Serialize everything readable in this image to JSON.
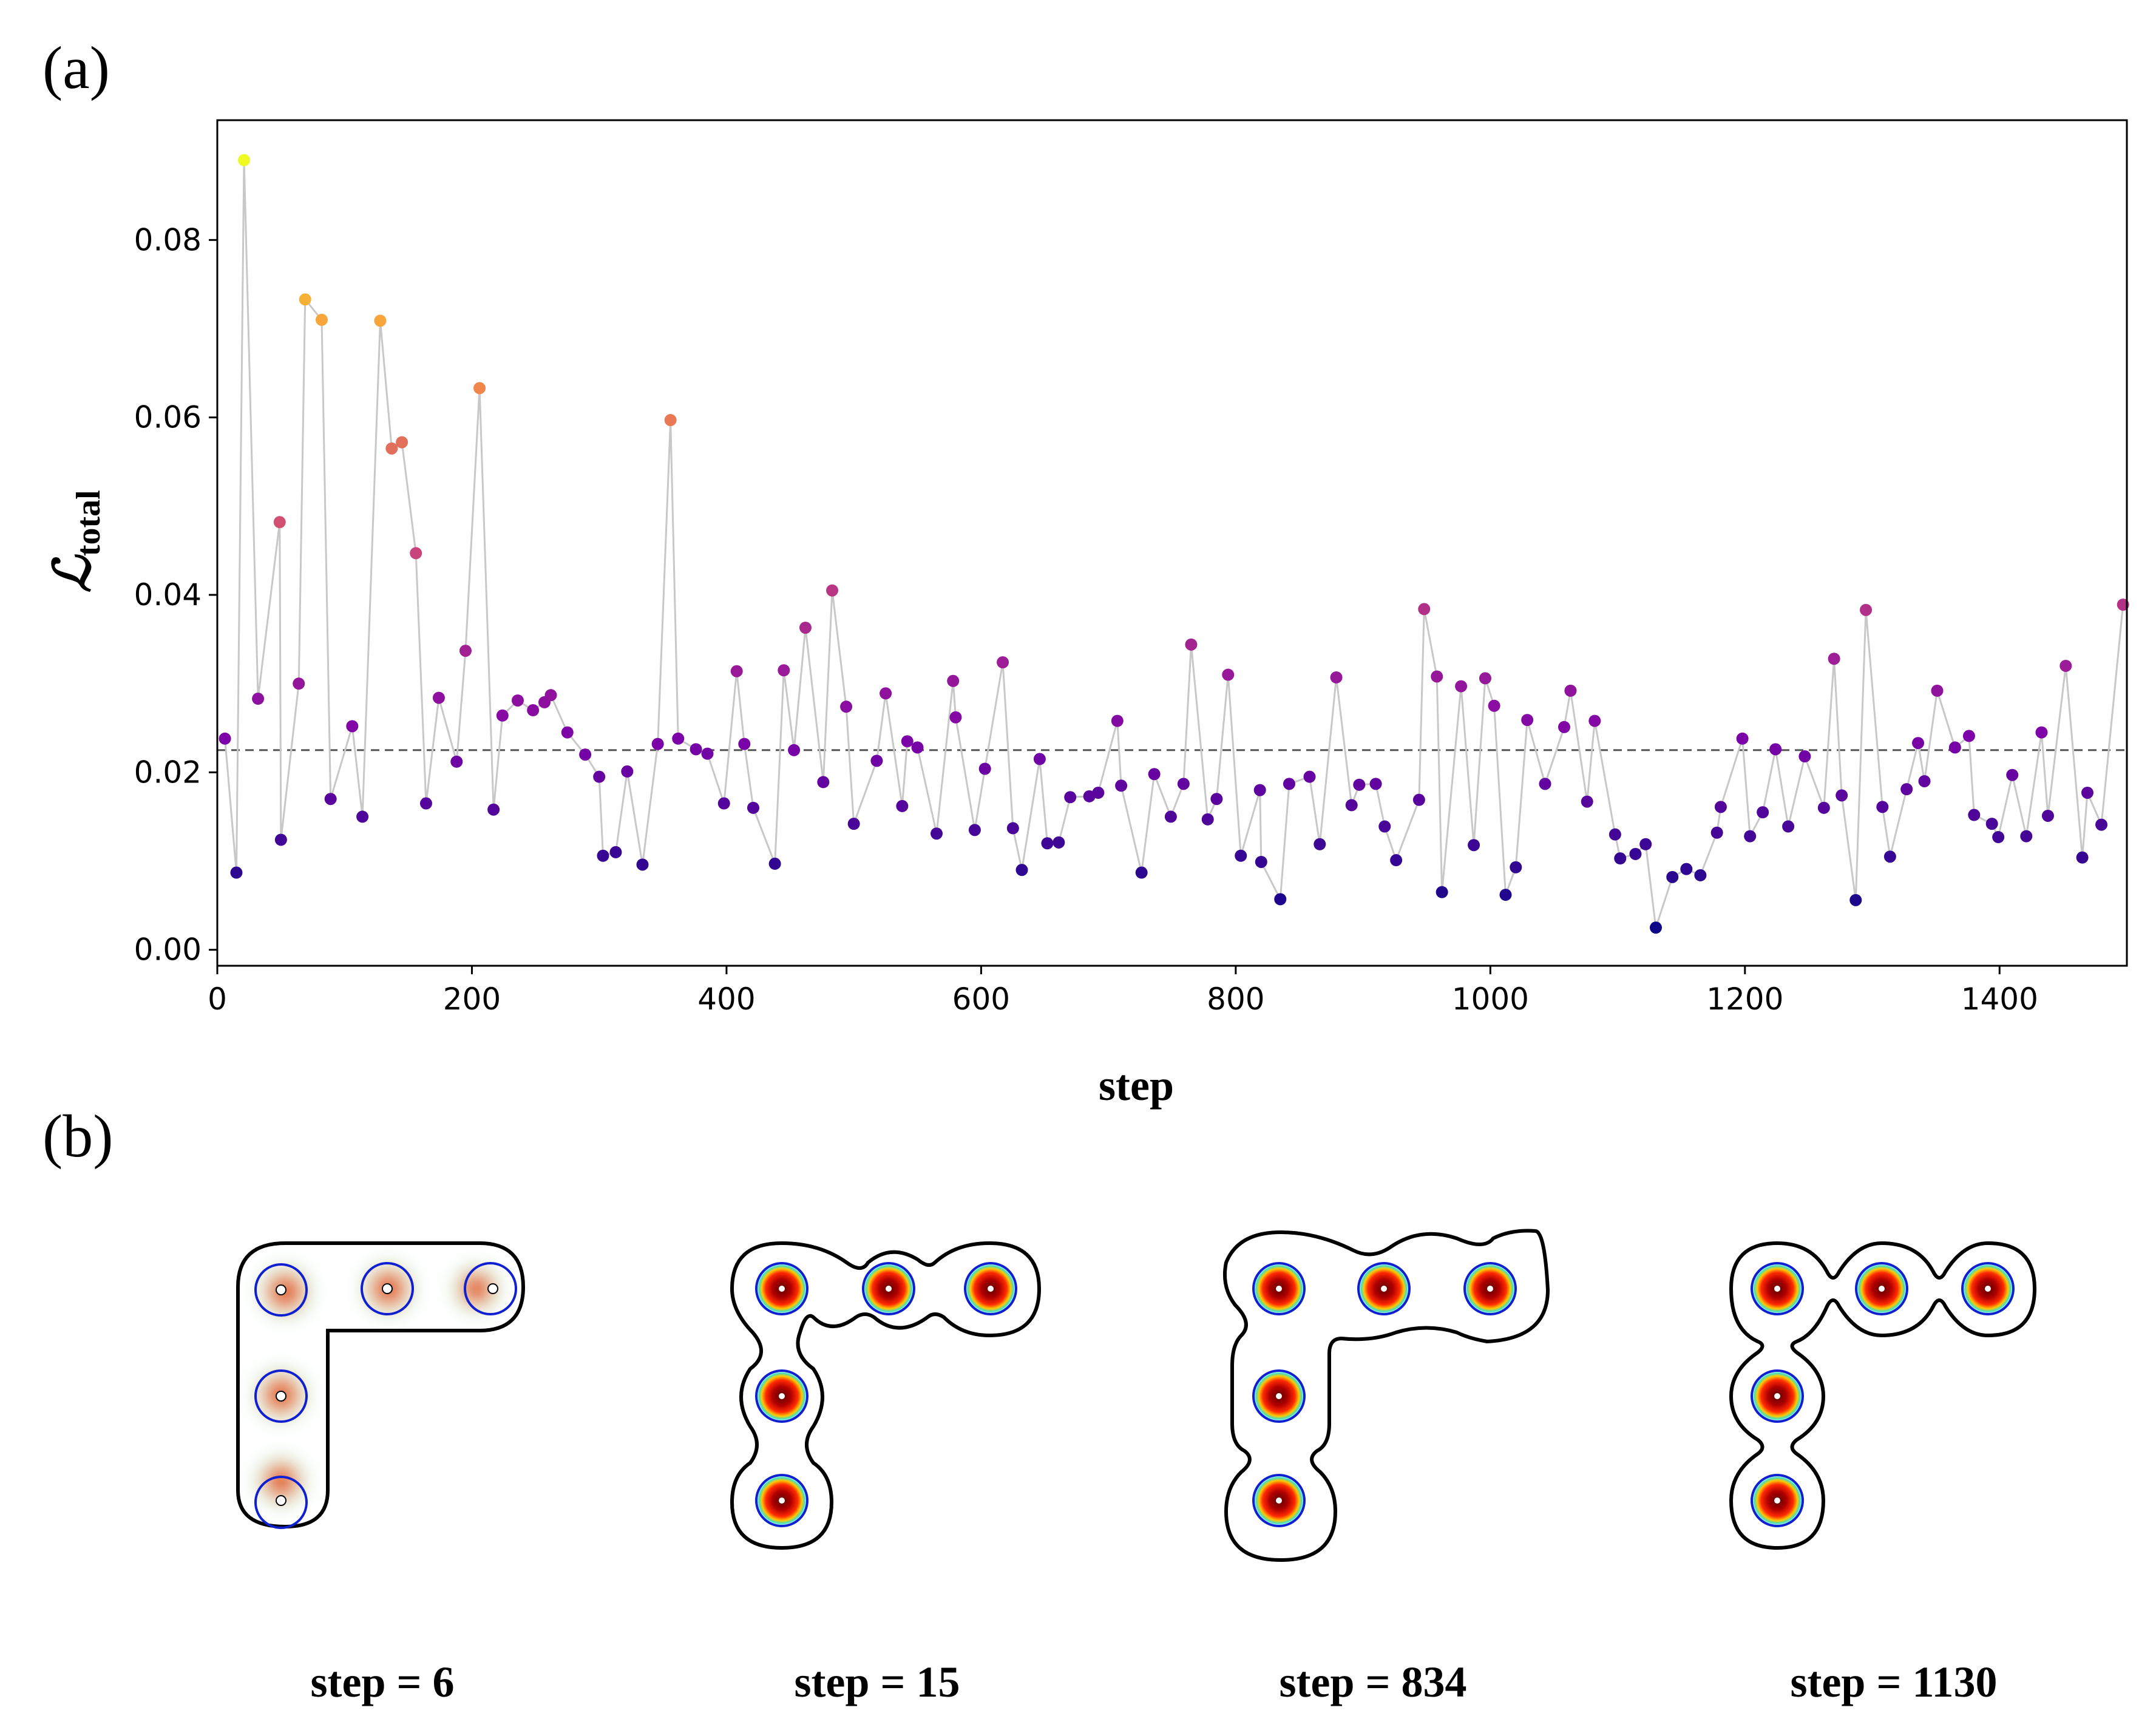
{
  "panels": {
    "a_label": "(a)",
    "b_label": "(b)"
  },
  "chart_data": {
    "type": "scatter",
    "title": "",
    "xlabel": "step",
    "ylabel_main": "ℒ",
    "ylabel_sub": "total",
    "xlim": [
      0,
      1500
    ],
    "ylim": [
      -0.0018,
      0.0935
    ],
    "xticks": [
      0,
      200,
      400,
      600,
      800,
      1000,
      1200,
      1400
    ],
    "yticks": [
      0.0,
      0.02,
      0.04,
      0.06,
      0.08
    ],
    "ytick_labels": [
      "0.00",
      "0.02",
      "0.04",
      "0.06",
      "0.08"
    ],
    "reference_line": 0.0225,
    "colormap": "plasma",
    "series": [
      {
        "name": "total loss",
        "points": [
          [
            6,
            0.0238
          ],
          [
            15,
            0.0087
          ],
          [
            21,
            0.089
          ],
          [
            32,
            0.0283
          ],
          [
            49,
            0.0482
          ],
          [
            50,
            0.0124
          ],
          [
            64,
            0.03
          ],
          [
            69,
            0.0733
          ],
          [
            82,
            0.071
          ],
          [
            89,
            0.017
          ],
          [
            106,
            0.0252
          ],
          [
            114,
            0.015
          ],
          [
            128,
            0.0709
          ],
          [
            137,
            0.0565
          ],
          [
            145,
            0.0572
          ],
          [
            156,
            0.0447
          ],
          [
            164,
            0.0165
          ],
          [
            174,
            0.0284
          ],
          [
            188,
            0.0212
          ],
          [
            195,
            0.0337
          ],
          [
            206,
            0.0633
          ],
          [
            217,
            0.0158
          ],
          [
            224,
            0.0264
          ],
          [
            236,
            0.0281
          ],
          [
            248,
            0.027
          ],
          [
            257,
            0.0279
          ],
          [
            262,
            0.0287
          ],
          [
            275,
            0.0245
          ],
          [
            289,
            0.022
          ],
          [
            300,
            0.0195
          ],
          [
            303,
            0.0106
          ],
          [
            313,
            0.011
          ],
          [
            322,
            0.0201
          ],
          [
            334,
            0.0096
          ],
          [
            346,
            0.0232
          ],
          [
            356,
            0.0597
          ],
          [
            362,
            0.0238
          ],
          [
            376,
            0.0226
          ],
          [
            385,
            0.0221
          ],
          [
            398,
            0.0165
          ],
          [
            408,
            0.0314
          ],
          [
            414,
            0.0232
          ],
          [
            421,
            0.016
          ],
          [
            438,
            0.0097
          ],
          [
            445,
            0.0315
          ],
          [
            453,
            0.0225
          ],
          [
            462,
            0.0363
          ],
          [
            476,
            0.0189
          ],
          [
            483,
            0.0405
          ],
          [
            494,
            0.0274
          ],
          [
            500,
            0.0142
          ],
          [
            518,
            0.0213
          ],
          [
            525,
            0.0289
          ],
          [
            538,
            0.0162
          ],
          [
            542,
            0.0235
          ],
          [
            550,
            0.0228
          ],
          [
            565,
            0.0131
          ],
          [
            578,
            0.0303
          ],
          [
            580,
            0.0262
          ],
          [
            595,
            0.0135
          ],
          [
            603,
            0.0204
          ],
          [
            617,
            0.0324
          ],
          [
            625,
            0.0137
          ],
          [
            632,
            0.009
          ],
          [
            646,
            0.0215
          ],
          [
            652,
            0.012
          ],
          [
            661,
            0.0121
          ],
          [
            670,
            0.0172
          ],
          [
            685,
            0.0173
          ],
          [
            692,
            0.0177
          ],
          [
            707,
            0.0258
          ],
          [
            710,
            0.0185
          ],
          [
            726,
            0.0087
          ],
          [
            736,
            0.0198
          ],
          [
            749,
            0.015
          ],
          [
            759,
            0.0187
          ],
          [
            765,
            0.0344
          ],
          [
            778,
            0.0147
          ],
          [
            785,
            0.017
          ],
          [
            794,
            0.031
          ],
          [
            804,
            0.0106
          ],
          [
            819,
            0.018
          ],
          [
            820,
            0.0099
          ],
          [
            835,
            0.0057
          ],
          [
            842,
            0.0187
          ],
          [
            858,
            0.0195
          ],
          [
            866,
            0.0119
          ],
          [
            879,
            0.0307
          ],
          [
            891,
            0.0163
          ],
          [
            897,
            0.0186
          ],
          [
            910,
            0.0187
          ],
          [
            917,
            0.0139
          ],
          [
            926,
            0.0101
          ],
          [
            944,
            0.0169
          ],
          [
            948,
            0.0384
          ],
          [
            958,
            0.0308
          ],
          [
            962,
            0.0065
          ],
          [
            977,
            0.0297
          ],
          [
            987,
            0.0118
          ],
          [
            996,
            0.0306
          ],
          [
            1003,
            0.0275
          ],
          [
            1012,
            0.0062
          ],
          [
            1020,
            0.0093
          ],
          [
            1029,
            0.0259
          ],
          [
            1043,
            0.0187
          ],
          [
            1058,
            0.0251
          ],
          [
            1063,
            0.0292
          ],
          [
            1076,
            0.0167
          ],
          [
            1082,
            0.0258
          ],
          [
            1098,
            0.013
          ],
          [
            1102,
            0.0103
          ],
          [
            1114,
            0.0108
          ],
          [
            1122,
            0.0119
          ],
          [
            1130,
            0.0025
          ],
          [
            1143,
            0.0082
          ],
          [
            1154,
            0.0091
          ],
          [
            1165,
            0.0084
          ],
          [
            1178,
            0.0132
          ],
          [
            1181,
            0.0161
          ],
          [
            1198,
            0.0238
          ],
          [
            1204,
            0.0128
          ],
          [
            1214,
            0.0155
          ],
          [
            1224,
            0.0226
          ],
          [
            1234,
            0.0139
          ],
          [
            1247,
            0.0218
          ],
          [
            1262,
            0.016
          ],
          [
            1270,
            0.0328
          ],
          [
            1276,
            0.0174
          ],
          [
            1287,
            0.0056
          ],
          [
            1295,
            0.0383
          ],
          [
            1308,
            0.0161
          ],
          [
            1314,
            0.0105
          ],
          [
            1327,
            0.0181
          ],
          [
            1336,
            0.0233
          ],
          [
            1341,
            0.019
          ],
          [
            1351,
            0.0292
          ],
          [
            1365,
            0.0228
          ],
          [
            1376,
            0.0241
          ],
          [
            1380,
            0.0152
          ],
          [
            1394,
            0.0142
          ],
          [
            1399,
            0.0127
          ],
          [
            1410,
            0.0197
          ],
          [
            1421,
            0.0128
          ],
          [
            1433,
            0.0245
          ],
          [
            1438,
            0.0151
          ],
          [
            1452,
            0.032
          ],
          [
            1465,
            0.0104
          ],
          [
            1469,
            0.0177
          ],
          [
            1480,
            0.0141
          ],
          [
            1497,
            0.0389
          ]
        ]
      }
    ]
  },
  "snapshots": [
    {
      "label": "step = 6"
    },
    {
      "label": "step = 15"
    },
    {
      "label": "step = 834"
    },
    {
      "label": "step = 1130"
    }
  ]
}
